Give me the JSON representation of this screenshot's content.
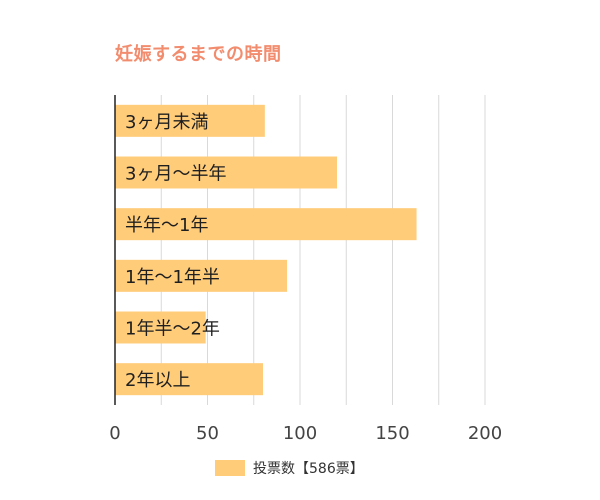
{
  "chart_data": {
    "type": "bar",
    "orientation": "horizontal",
    "title": "妊娠するまでの時間",
    "categories": [
      "3ヶ月未満",
      "3ヶ月～半年",
      "半年～1年",
      "1年～1年半",
      "1年半～2年",
      "2年以上"
    ],
    "series": [
      {
        "name": "投票数【586票】",
        "values": [
          81,
          120,
          163,
          93,
          49,
          80
        ]
      }
    ],
    "xlim": [
      0,
      200
    ],
    "xticks": [
      0,
      50,
      100,
      150,
      200
    ],
    "grid": true,
    "legend": "bottom",
    "colors": {
      "bar": "#ffcc7a",
      "title": "#f28c6e",
      "grid": "#d9d9d9",
      "axis": "#222222"
    }
  }
}
